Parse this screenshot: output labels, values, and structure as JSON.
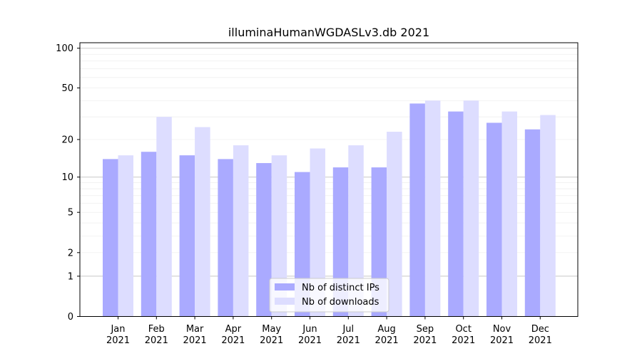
{
  "chart_data": {
    "type": "bar",
    "title": "illuminaHumanWGDASLv3.db 2021",
    "xlabel": "",
    "ylabel": "",
    "categories": [
      "Jan\n2021",
      "Feb\n2021",
      "Mar\n2021",
      "Apr\n2021",
      "May\n2021",
      "Jun\n2021",
      "Jul\n2021",
      "Aug\n2021",
      "Sep\n2021",
      "Oct\n2021",
      "Nov\n2021",
      "Dec\n2021"
    ],
    "series": [
      {
        "name": "Nb of distinct IPs",
        "color": "#aaaaff",
        "values": [
          14,
          16,
          15,
          14,
          13,
          11,
          12,
          12,
          38,
          33,
          27,
          24
        ]
      },
      {
        "name": "Nb of downloads",
        "color": "#ddddff",
        "values": [
          15,
          30,
          25,
          18,
          15,
          17,
          18,
          23,
          40,
          40,
          33,
          31
        ]
      }
    ],
    "y_scale": "log(1+y)",
    "ylim": [
      0,
      110
    ],
    "yticks": [
      0,
      1,
      2,
      5,
      10,
      20,
      50,
      100
    ],
    "grid": "horizontal",
    "legend_position": "lower-center"
  }
}
